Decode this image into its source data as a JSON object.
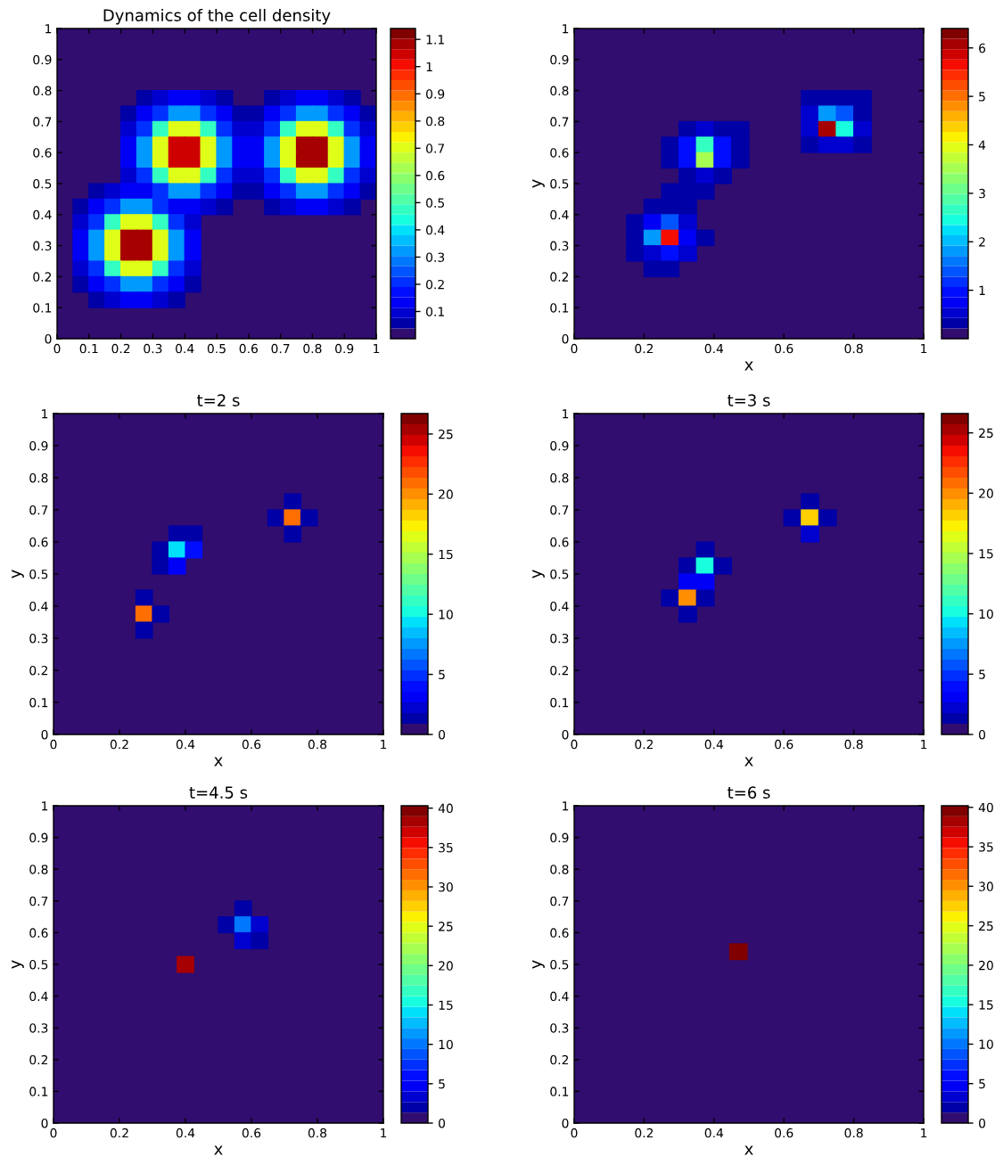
{
  "chart_data": [
    {
      "type": "scatter",
      "marker": "square",
      "title": "Dynamics of the cell density",
      "xlim": [
        0,
        1
      ],
      "ylim": [
        0,
        1
      ],
      "xticks": [
        0,
        0.1,
        0.2,
        0.3,
        0.4,
        0.5,
        0.6,
        0.7,
        0.8,
        0.9,
        1
      ],
      "yticks": [
        0,
        0.1,
        0.2,
        0.3,
        0.4,
        0.5,
        0.6,
        0.7,
        0.8,
        0.9,
        1
      ],
      "clim": [
        0,
        1.14
      ],
      "cticks": [
        0.1,
        0.2,
        0.3,
        0.4,
        0.5,
        0.6,
        0.7,
        0.8,
        0.9,
        1,
        1.1
      ],
      "x": [
        0.275,
        0.325,
        0.375,
        0.425,
        0.475,
        0.525,
        0.675,
        0.725,
        0.775,
        0.825,
        0.875,
        0.925,
        0.225,
        0.275,
        0.325,
        0.375,
        0.425,
        0.475,
        0.525,
        0.575,
        0.625,
        0.675,
        0.725,
        0.775,
        0.825,
        0.875,
        0.925,
        0.975,
        0.225,
        0.275,
        0.325,
        0.375,
        0.425,
        0.475,
        0.525,
        0.575,
        0.625,
        0.675,
        0.725,
        0.775,
        0.825,
        0.875,
        0.925,
        0.975,
        0.225,
        0.275,
        0.325,
        0.375,
        0.425,
        0.475,
        0.525,
        0.575,
        0.625,
        0.675,
        0.725,
        0.775,
        0.825,
        0.875,
        0.925,
        0.975,
        0.225,
        0.275,
        0.325,
        0.375,
        0.425,
        0.475,
        0.525,
        0.575,
        0.625,
        0.675,
        0.725,
        0.775,
        0.825,
        0.875,
        0.925,
        0.975,
        0.225,
        0.275,
        0.325,
        0.375,
        0.425,
        0.475,
        0.525,
        0.575,
        0.625,
        0.675,
        0.725,
        0.775,
        0.825,
        0.875,
        0.925,
        0.975,
        0.125,
        0.175,
        0.225,
        0.275,
        0.325,
        0.375,
        0.425,
        0.475,
        0.525,
        0.575,
        0.625,
        0.675,
        0.725,
        0.775,
        0.825,
        0.875,
        0.925,
        0.975,
        0.075,
        0.125,
        0.175,
        0.225,
        0.275,
        0.325,
        0.375,
        0.425,
        0.475,
        0.525,
        0.675,
        0.725,
        0.775,
        0.825,
        0.875,
        0.925,
        0.075,
        0.125,
        0.175,
        0.225,
        0.275,
        0.325,
        0.375,
        0.425,
        0.075,
        0.125,
        0.175,
        0.225,
        0.275,
        0.325,
        0.375,
        0.425,
        0.075,
        0.125,
        0.175,
        0.225,
        0.275,
        0.325,
        0.375,
        0.425,
        0.075,
        0.125,
        0.175,
        0.225,
        0.275,
        0.325,
        0.375,
        0.425,
        0.075,
        0.125,
        0.175,
        0.225,
        0.275,
        0.325,
        0.375,
        0.425,
        0.125,
        0.175,
        0.225,
        0.275,
        0.325,
        0.375
      ],
      "values": [
        0.775,
        0.775,
        0.775,
        0.775,
        0.775,
        0.775,
        0.775,
        0.775,
        0.775,
        0.775,
        0.775,
        0.775,
        0.725,
        0.725,
        0.725,
        0.725,
        0.725,
        0.725,
        0.725,
        0.725,
        0.725,
        0.725,
        0.725,
        0.725,
        0.725,
        0.725,
        0.725,
        0.725,
        0.675,
        0.675,
        0.675,
        0.675,
        0.675,
        0.675,
        0.675,
        0.675,
        0.675,
        0.675,
        0.675,
        0.675,
        0.675,
        0.675,
        0.675,
        0.675,
        0.625,
        0.625,
        0.625,
        0.625,
        0.625,
        0.625,
        0.625,
        0.625,
        0.625,
        0.625,
        0.625,
        0.625,
        0.625,
        0.625,
        0.625,
        0.625,
        0.575,
        0.575,
        0.575,
        0.575,
        0.575,
        0.575,
        0.575,
        0.575,
        0.575,
        0.575,
        0.575,
        0.575,
        0.575,
        0.575,
        0.575,
        0.575,
        0.525,
        0.525,
        0.525,
        0.525,
        0.525,
        0.525,
        0.525,
        0.525,
        0.525,
        0.525,
        0.525,
        0.525,
        0.525,
        0.525,
        0.525,
        0.525,
        0.475,
        0.475,
        0.475,
        0.475,
        0.475,
        0.475,
        0.475,
        0.475,
        0.475,
        0.475,
        0.475,
        0.475,
        0.475,
        0.475,
        0.475,
        0.475,
        0.475,
        0.475,
        0.425,
        0.425,
        0.425,
        0.425,
        0.425,
        0.425,
        0.425,
        0.425,
        0.425,
        0.425,
        0.425,
        0.425,
        0.425,
        0.425,
        0.425,
        0.425,
        0.375,
        0.375,
        0.375,
        0.375,
        0.375,
        0.375,
        0.375,
        0.375,
        0.325,
        0.325,
        0.325,
        0.325,
        0.325,
        0.325,
        0.325,
        0.325,
        0.275,
        0.275,
        0.275,
        0.275,
        0.275,
        0.275,
        0.275,
        0.275,
        0.225,
        0.225,
        0.225,
        0.225,
        0.225,
        0.225,
        0.225,
        0.225,
        0.175,
        0.175,
        0.175,
        0.175,
        0.175,
        0.175,
        0.175,
        0.175,
        0.125,
        0.125,
        0.125,
        0.125,
        0.125,
        0.125
      ],
      "cvalues": [
        0.05,
        0.1,
        0.12,
        0.12,
        0.1,
        0.05,
        0.05,
        0.1,
        0.12,
        0.12,
        0.1,
        0.05,
        0.05,
        0.12,
        0.2,
        0.32,
        0.32,
        0.2,
        0.12,
        0.05,
        0.05,
        0.12,
        0.2,
        0.32,
        0.32,
        0.2,
        0.12,
        0.05,
        0.1,
        0.2,
        0.48,
        0.72,
        0.72,
        0.48,
        0.2,
        0.1,
        0.1,
        0.2,
        0.48,
        0.72,
        0.72,
        0.48,
        0.2,
        0.1,
        0.12,
        0.32,
        0.72,
        1.05,
        1.05,
        0.72,
        0.32,
        0.12,
        0.12,
        0.32,
        0.72,
        1.1,
        1.1,
        0.72,
        0.32,
        0.12,
        0.12,
        0.32,
        0.72,
        1.05,
        1.05,
        0.72,
        0.32,
        0.12,
        0.12,
        0.32,
        0.72,
        1.1,
        1.1,
        0.72,
        0.32,
        0.12,
        0.1,
        0.2,
        0.48,
        0.72,
        0.72,
        0.48,
        0.2,
        0.1,
        0.1,
        0.2,
        0.48,
        0.72,
        0.72,
        0.48,
        0.2,
        0.1,
        0.05,
        0.1,
        0.12,
        0.12,
        0.2,
        0.32,
        0.32,
        0.2,
        0.12,
        0.05,
        0.05,
        0.12,
        0.2,
        0.32,
        0.32,
        0.2,
        0.12,
        0.05,
        0.05,
        0.12,
        0.2,
        0.32,
        0.32,
        0.2,
        0.12,
        0.12,
        0.1,
        0.05,
        0.05,
        0.1,
        0.12,
        0.12,
        0.1,
        0.05,
        0.1,
        0.2,
        0.48,
        0.72,
        0.72,
        0.48,
        0.2,
        0.1,
        0.12,
        0.32,
        0.72,
        1.1,
        1.1,
        0.72,
        0.32,
        0.12,
        0.12,
        0.32,
        0.72,
        1.1,
        1.1,
        0.72,
        0.32,
        0.12,
        0.1,
        0.2,
        0.48,
        0.72,
        0.72,
        0.48,
        0.2,
        0.1,
        0.05,
        0.12,
        0.2,
        0.32,
        0.32,
        0.2,
        0.12,
        0.05,
        0.05,
        0.1,
        0.12,
        0.12,
        0.1,
        0.05
      ]
    },
    {
      "type": "scatter",
      "marker": "square",
      "xlabel": "x",
      "ylabel": "y",
      "xlim": [
        0,
        1
      ],
      "ylim": [
        0,
        1
      ],
      "xticks": [
        0,
        0.2,
        0.4,
        0.6,
        0.8,
        1
      ],
      "yticks": [
        0,
        0.1,
        0.2,
        0.3,
        0.4,
        0.5,
        0.6,
        0.7,
        0.8,
        0.9,
        1
      ],
      "clim": [
        0,
        6.4
      ],
      "cticks": [
        1,
        2,
        3,
        4,
        5,
        6
      ],
      "x": [
        0.675,
        0.725,
        0.775,
        0.825,
        0.675,
        0.725,
        0.775,
        0.825,
        0.325,
        0.375,
        0.425,
        0.475,
        0.675,
        0.725,
        0.775,
        0.825,
        0.275,
        0.325,
        0.375,
        0.425,
        0.475,
        0.675,
        0.725,
        0.775,
        0.825,
        0.275,
        0.325,
        0.375,
        0.425,
        0.475,
        0.325,
        0.375,
        0.425,
        0.275,
        0.325,
        0.375,
        0.225,
        0.275,
        0.325,
        0.175,
        0.225,
        0.275,
        0.325,
        0.175,
        0.225,
        0.275,
        0.325,
        0.375,
        0.175,
        0.225,
        0.275,
        0.325,
        0.225,
        0.275
      ],
      "values": [
        0.775,
        0.775,
        0.775,
        0.775,
        0.725,
        0.725,
        0.725,
        0.725,
        0.675,
        0.675,
        0.675,
        0.675,
        0.675,
        0.675,
        0.675,
        0.675,
        0.625,
        0.625,
        0.625,
        0.625,
        0.625,
        0.625,
        0.625,
        0.625,
        0.625,
        0.575,
        0.575,
        0.575,
        0.575,
        0.575,
        0.525,
        0.525,
        0.525,
        0.475,
        0.475,
        0.475,
        0.425,
        0.425,
        0.425,
        0.375,
        0.375,
        0.375,
        0.375,
        0.325,
        0.325,
        0.325,
        0.325,
        0.325,
        0.275,
        0.275,
        0.275,
        0.275,
        0.225,
        0.225
      ],
      "cvalues": [
        0.25,
        0.4,
        0.35,
        0.25,
        0.5,
        1.8,
        1.3,
        0.4,
        0.3,
        0.45,
        0.35,
        0.25,
        0.6,
        6,
        2.5,
        0.45,
        0.25,
        0.9,
        2.6,
        1,
        0.3,
        0.3,
        0.6,
        0.6,
        0.25,
        0.25,
        1,
        3.5,
        1,
        0.3,
        0.4,
        0.6,
        0.35,
        0.25,
        0.3,
        0.25,
        0.25,
        0.3,
        0.3,
        0.25,
        0.8,
        1.3,
        0.5,
        0.35,
        1.8,
        5.6,
        0.8,
        0.25,
        0.25,
        0.6,
        0.9,
        0.45,
        0.25,
        0.25
      ]
    },
    {
      "type": "scatter",
      "marker": "square",
      "title": "t=2 s",
      "xlabel": "x",
      "ylabel": "y",
      "xlim": [
        0,
        1
      ],
      "ylim": [
        0,
        1
      ],
      "xticks": [
        0,
        0.2,
        0.4,
        0.6,
        0.8,
        1
      ],
      "yticks": [
        0,
        0.1,
        0.2,
        0.3,
        0.4,
        0.5,
        0.6,
        0.7,
        0.8,
        0.9,
        1
      ],
      "clim": [
        0,
        26.7
      ],
      "cticks": [
        0,
        5,
        10,
        15,
        20,
        25
      ],
      "x": [
        0.725,
        0.675,
        0.725,
        0.775,
        0.375,
        0.425,
        0.725,
        0.325,
        0.375,
        0.425,
        0.325,
        0.375,
        0.275,
        0.275,
        0.325,
        0.275
      ],
      "values": [
        0.725,
        0.675,
        0.675,
        0.675,
        0.625,
        0.625,
        0.625,
        0.575,
        0.575,
        0.575,
        0.525,
        0.525,
        0.425,
        0.375,
        0.375,
        0.325
      ],
      "cvalues": [
        1.5,
        1.5,
        21,
        1,
        1.5,
        1,
        1,
        1,
        9,
        4,
        1,
        3,
        1,
        21,
        1.5,
        1
      ]
    },
    {
      "type": "scatter",
      "marker": "square",
      "title": "t=3 s",
      "xlabel": "x",
      "ylabel": "y",
      "xlim": [
        0,
        1
      ],
      "ylim": [
        0,
        1
      ],
      "xticks": [
        0,
        0.2,
        0.4,
        0.6,
        0.8,
        1
      ],
      "yticks": [
        0,
        0.1,
        0.2,
        0.3,
        0.4,
        0.5,
        0.6,
        0.7,
        0.8,
        0.9,
        1
      ],
      "clim": [
        0,
        26.6
      ],
      "cticks": [
        0,
        5,
        10,
        15,
        20,
        25
      ],
      "x": [
        0.675,
        0.625,
        0.675,
        0.725,
        0.675,
        0.375,
        0.325,
        0.375,
        0.425,
        0.325,
        0.375,
        0.275,
        0.325,
        0.375,
        0.325
      ],
      "values": [
        0.725,
        0.675,
        0.675,
        0.675,
        0.625,
        0.575,
        0.525,
        0.525,
        0.525,
        0.475,
        0.475,
        0.425,
        0.425,
        0.425,
        0.375
      ],
      "cvalues": [
        1,
        1.5,
        18,
        1.5,
        2,
        1,
        1.5,
        10,
        1,
        3,
        3,
        1,
        20,
        1.5,
        1
      ]
    },
    {
      "type": "scatter",
      "marker": "square",
      "title": "t=4.5 s",
      "xlabel": "x",
      "ylabel": "y",
      "xlim": [
        0,
        1
      ],
      "ylim": [
        0,
        1
      ],
      "xticks": [
        0,
        0.2,
        0.4,
        0.6,
        0.8,
        1
      ],
      "yticks": [
        0,
        0.1,
        0.2,
        0.3,
        0.4,
        0.5,
        0.6,
        0.7,
        0.8,
        0.9,
        1
      ],
      "clim": [
        0,
        40.3
      ],
      "cticks": [
        0,
        5,
        10,
        15,
        20,
        25,
        30,
        35,
        40
      ],
      "x": [
        0.575,
        0.525,
        0.575,
        0.625,
        0.575,
        0.625,
        0.4
      ],
      "values": [
        0.675,
        0.625,
        0.625,
        0.625,
        0.575,
        0.575,
        0.5
      ],
      "cvalues": [
        1.5,
        1.5,
        10,
        4,
        3,
        2,
        38
      ]
    },
    {
      "type": "scatter",
      "marker": "square",
      "title": "t=6 s",
      "xlabel": "x",
      "ylabel": "y",
      "xlim": [
        0,
        1
      ],
      "ylim": [
        0,
        1
      ],
      "xticks": [
        0,
        0.2,
        0.4,
        0.6,
        0.8,
        1
      ],
      "yticks": [
        0,
        0.1,
        0.2,
        0.3,
        0.4,
        0.5,
        0.6,
        0.7,
        0.8,
        0.9,
        1
      ],
      "clim": [
        0,
        40.2
      ],
      "cticks": [
        0,
        5,
        10,
        15,
        20,
        25,
        30,
        35,
        40
      ],
      "x": [
        0.47
      ],
      "values": [
        0.54
      ],
      "cvalues": [
        40
      ]
    }
  ]
}
